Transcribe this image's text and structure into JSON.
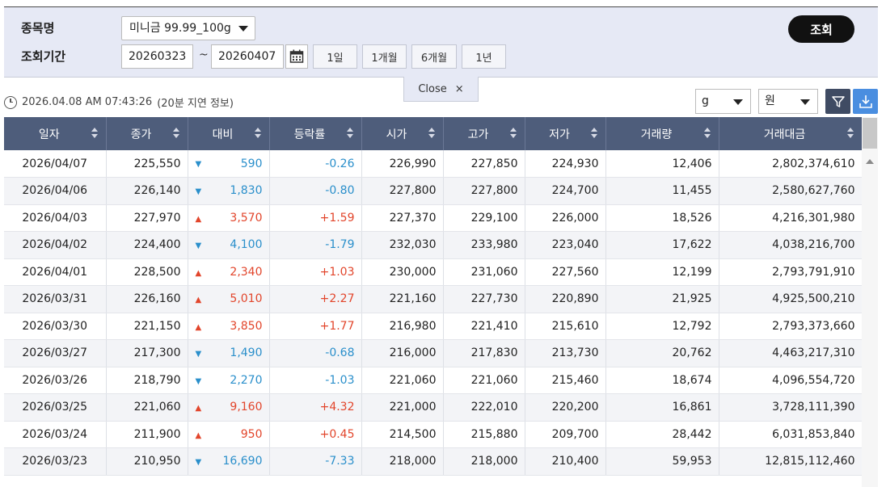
{
  "search": {
    "item_label": "종목명",
    "item_value": "미니금 99.99_100g",
    "period_label": "조회기간",
    "start_date": "20260323",
    "tilde": "~",
    "end_date": "20260407",
    "period_buttons": [
      "1일",
      "1개월",
      "6개월",
      "1년"
    ],
    "query_button": "조회",
    "close_label": "Close",
    "close_icon": "×"
  },
  "info": {
    "timestamp": "2026.04.08 AM 07:43:26",
    "delay_note": "(20분 지연 정보)",
    "unit_weight": "g",
    "unit_currency": "원"
  },
  "colors": {
    "header_bg": "#4e5d7b",
    "up": "#e2452b",
    "down": "#2a8fcb",
    "query_bg": "#111111"
  },
  "table": {
    "headers": [
      "일자",
      "종가",
      "대비",
      "등락률",
      "시가",
      "고가",
      "저가",
      "거래량",
      "거래대금"
    ],
    "rows": [
      {
        "date": "2026/04/07",
        "close": "225,550",
        "dir": "down",
        "tri": "▼",
        "diff": "590",
        "rate": "-0.26",
        "open": "226,990",
        "high": "227,850",
        "low": "224,930",
        "volume": "12,406",
        "amount": "2,802,374,610"
      },
      {
        "date": "2026/04/06",
        "close": "226,140",
        "dir": "down",
        "tri": "▼",
        "diff": "1,830",
        "rate": "-0.80",
        "open": "227,800",
        "high": "227,800",
        "low": "224,700",
        "volume": "11,455",
        "amount": "2,580,627,760"
      },
      {
        "date": "2026/04/03",
        "close": "227,970",
        "dir": "up",
        "tri": "▲",
        "diff": "3,570",
        "rate": "+1.59",
        "open": "227,370",
        "high": "229,100",
        "low": "226,000",
        "volume": "18,526",
        "amount": "4,216,301,980"
      },
      {
        "date": "2026/04/02",
        "close": "224,400",
        "dir": "down",
        "tri": "▼",
        "diff": "4,100",
        "rate": "-1.79",
        "open": "232,030",
        "high": "233,980",
        "low": "223,040",
        "volume": "17,622",
        "amount": "4,038,216,700"
      },
      {
        "date": "2026/04/01",
        "close": "228,500",
        "dir": "up",
        "tri": "▲",
        "diff": "2,340",
        "rate": "+1.03",
        "open": "230,000",
        "high": "231,060",
        "low": "227,560",
        "volume": "12,199",
        "amount": "2,793,791,910"
      },
      {
        "date": "2026/03/31",
        "close": "226,160",
        "dir": "up",
        "tri": "▲",
        "diff": "5,010",
        "rate": "+2.27",
        "open": "221,160",
        "high": "227,730",
        "low": "220,890",
        "volume": "21,925",
        "amount": "4,925,500,210"
      },
      {
        "date": "2026/03/30",
        "close": "221,150",
        "dir": "up",
        "tri": "▲",
        "diff": "3,850",
        "rate": "+1.77",
        "open": "216,980",
        "high": "221,410",
        "low": "215,610",
        "volume": "12,792",
        "amount": "2,793,373,660"
      },
      {
        "date": "2026/03/27",
        "close": "217,300",
        "dir": "down",
        "tri": "▼",
        "diff": "1,490",
        "rate": "-0.68",
        "open": "216,000",
        "high": "217,830",
        "low": "213,730",
        "volume": "20,762",
        "amount": "4,463,217,310"
      },
      {
        "date": "2026/03/26",
        "close": "218,790",
        "dir": "down",
        "tri": "▼",
        "diff": "2,270",
        "rate": "-1.03",
        "open": "221,060",
        "high": "221,060",
        "low": "215,460",
        "volume": "18,674",
        "amount": "4,096,554,720"
      },
      {
        "date": "2026/03/25",
        "close": "221,060",
        "dir": "up",
        "tri": "▲",
        "diff": "9,160",
        "rate": "+4.32",
        "open": "221,000",
        "high": "222,010",
        "low": "220,200",
        "volume": "16,861",
        "amount": "3,728,111,390"
      },
      {
        "date": "2026/03/24",
        "close": "211,900",
        "dir": "up",
        "tri": "▲",
        "diff": "950",
        "rate": "+0.45",
        "open": "214,500",
        "high": "215,880",
        "low": "209,700",
        "volume": "28,442",
        "amount": "6,031,853,840"
      },
      {
        "date": "2026/03/23",
        "close": "210,950",
        "dir": "down",
        "tri": "▼",
        "diff": "16,690",
        "rate": "-7.33",
        "open": "218,000",
        "high": "218,000",
        "low": "210,400",
        "volume": "59,953",
        "amount": "12,815,112,460"
      }
    ]
  }
}
